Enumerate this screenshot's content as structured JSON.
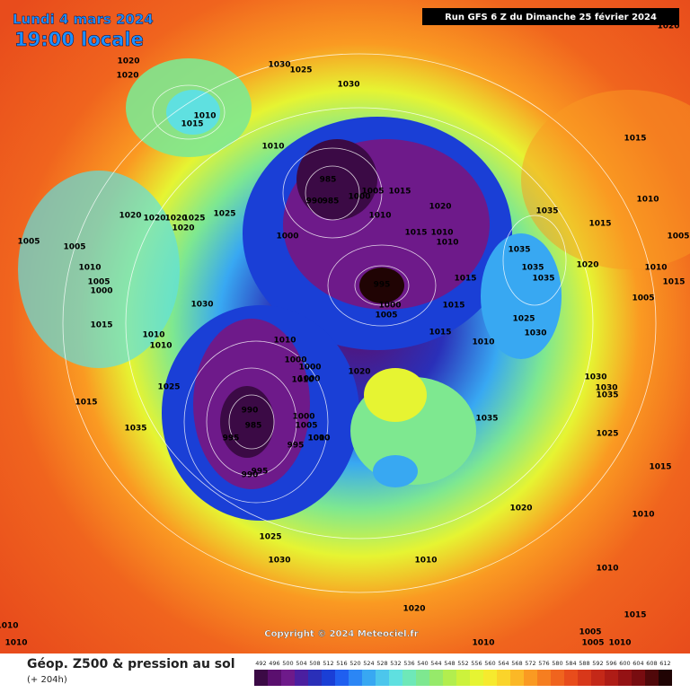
{
  "header": {
    "date": "Lundi 4 mars 2024",
    "time": "19:00 locale",
    "run": "Run GFS 6 Z du Dimanche 25 février 2024"
  },
  "copyright": "Copyright © 2024 Meteociel.fr",
  "footer": {
    "title": "Géop. Z500 & pression au sol",
    "lead": "(+ 204h)"
  },
  "scale": {
    "values": [
      492,
      496,
      500,
      504,
      508,
      512,
      516,
      520,
      524,
      528,
      532,
      536,
      540,
      544,
      548,
      552,
      556,
      560,
      564,
      568,
      572,
      576,
      580,
      584,
      588,
      592,
      596,
      600,
      604,
      608,
      612
    ],
    "colors": [
      "#3b0a45",
      "#5a0f6e",
      "#6e1a8a",
      "#4b1fa0",
      "#2a2fb8",
      "#1a3fd6",
      "#1f5ff0",
      "#2b86f5",
      "#38a8f2",
      "#4cc6ec",
      "#5fe0e0",
      "#6ee8b8",
      "#7ee890",
      "#96ea6a",
      "#b2ee4e",
      "#ccf23c",
      "#e6f432",
      "#f6ea2e",
      "#fad42a",
      "#fbb826",
      "#fa9a22",
      "#f67e20",
      "#f0641e",
      "#e84c1c",
      "#d8381a",
      "#c42818",
      "#ae1c16",
      "#941214",
      "#780c10",
      "#50080a",
      "#200404"
    ]
  },
  "pressure_labels": [
    1020,
    1020,
    1030,
    1025,
    1030,
    1010,
    1015,
    1010,
    985,
    990,
    985,
    1005,
    1015,
    1000,
    1020,
    1010,
    1020,
    1020,
    1020,
    1025,
    1025,
    1020,
    1015,
    1010,
    1010,
    1000,
    1005,
    1005,
    1010,
    1005,
    1000,
    1035,
    1015,
    1035,
    1035,
    1035,
    1020,
    1010,
    1015,
    995,
    1000,
    1005,
    1015,
    1030,
    1015,
    1010,
    1010,
    1010,
    1015,
    1010,
    1025,
    1030,
    1000,
    1000,
    1000,
    1020,
    1010,
    1025,
    1015,
    990,
    985,
    995,
    1000,
    1005,
    1000,
    995,
    1010,
    1035,
    1035,
    990,
    995,
    1025,
    1030,
    1020,
    1010,
    1025,
    1015,
    1010,
    1010,
    1020,
    1010,
    1005,
    1005,
    1010,
    1015,
    1010,
    1010,
    1015,
    1010,
    1005,
    1030,
    1030,
    1035,
    1005,
    1015,
    1020
  ]
}
